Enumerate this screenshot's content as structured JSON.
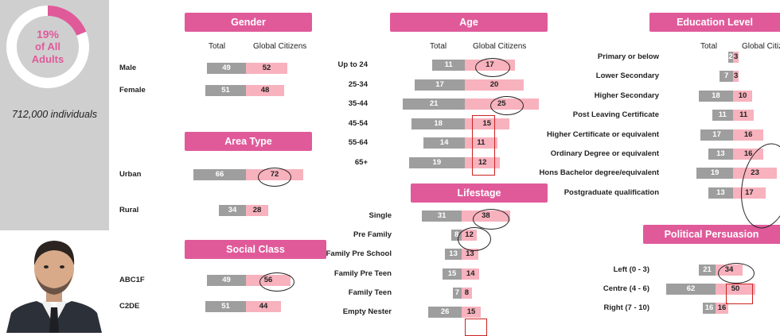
{
  "sidebar": {
    "pct": "19%",
    "line2": "of All",
    "line3": "Adults",
    "individuals": "712,000  individuals"
  },
  "colors": {
    "accent": "#e05a9a",
    "total_bar": "#9e9e9e",
    "global_bar": "#f7b2bd",
    "highlight_box": "#cc2222"
  },
  "column_headers": {
    "total": "Total",
    "global": "Global Citizens"
  },
  "chart_data": [
    {
      "type": "bar",
      "title": "Gender",
      "categories": [
        "Male",
        "Female"
      ],
      "series": [
        {
          "name": "Total",
          "values": [
            49,
            51
          ]
        },
        {
          "name": "Global Citizens",
          "values": [
            52,
            48
          ]
        }
      ]
    },
    {
      "type": "bar",
      "title": "Area Type",
      "categories": [
        "Urban",
        "Rural"
      ],
      "series": [
        {
          "values": [
            66,
            34
          ]
        },
        {
          "values": [
            72,
            28
          ]
        }
      ]
    },
    {
      "type": "bar",
      "title": "Social Class",
      "categories": [
        "ABC1F",
        "C2DE"
      ],
      "series": [
        {
          "values": [
            49,
            51
          ]
        },
        {
          "values": [
            56,
            44
          ]
        }
      ]
    },
    {
      "type": "bar",
      "title": "Age",
      "categories": [
        "Up to 24",
        "25-34",
        "35-44",
        "45-54",
        "55-64",
        "65+"
      ],
      "series": [
        {
          "name": "Total",
          "values": [
            11,
            17,
            21,
            18,
            14,
            19
          ]
        },
        {
          "name": "Global Citizens",
          "values": [
            17,
            20,
            25,
            15,
            11,
            12
          ]
        }
      ]
    },
    {
      "type": "bar",
      "title": "Lifestage",
      "categories": [
        "Single",
        "Pre Family",
        "Family Pre School",
        "Family Pre Teen",
        "Family Teen",
        "Empty Nester"
      ],
      "series": [
        {
          "values": [
            31,
            8,
            13,
            15,
            7,
            26
          ]
        },
        {
          "values": [
            38,
            12,
            13,
            14,
            8,
            15
          ]
        }
      ]
    },
    {
      "type": "bar",
      "title": "Education Level",
      "categories": [
        "Primary or below",
        "Lower Secondary",
        "Higher Secondary",
        "Post Leaving Certificate",
        "Higher Certificate or equivalent",
        "Ordinary Degree or equivalent",
        "Hons Bachelor degree/equivalent",
        "Postgraduate qualification"
      ],
      "series": [
        {
          "name": "Total",
          "values": [
            2,
            7,
            18,
            11,
            17,
            13,
            19,
            13
          ]
        },
        {
          "name": "Global Citizens",
          "values": [
            3,
            3,
            10,
            11,
            16,
            16,
            23,
            17
          ]
        }
      ]
    },
    {
      "type": "bar",
      "title": "Political Persuasion",
      "categories": [
        "Left (0 - 3)",
        "Centre (4 - 6)",
        "Right (7 - 10)"
      ],
      "series": [
        {
          "values": [
            21,
            62,
            16
          ]
        },
        {
          "values": [
            34,
            50,
            16
          ]
        }
      ]
    }
  ]
}
